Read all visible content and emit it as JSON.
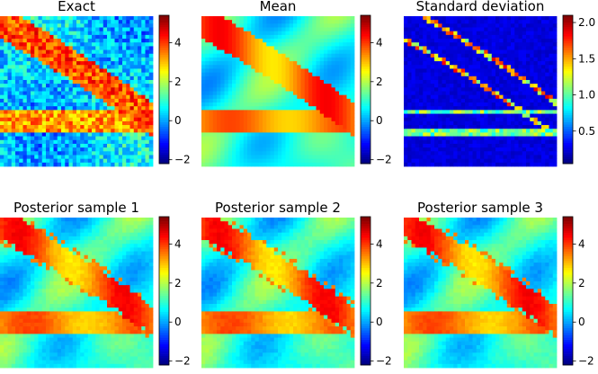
{
  "colormap": "jet",
  "colors": {
    "jet_low": "#00007f",
    "jet_mid": "#7fff7f",
    "jet_high": "#7f0000"
  },
  "chart_data": [
    {
      "type": "heatmap",
      "title": "Exact",
      "field": "noisy",
      "colorbar": {
        "range": [
          -2.2,
          5.4
        ],
        "ticks": [
          -2,
          0,
          2,
          4
        ],
        "tick_labels": [
          "−2",
          "0",
          "2",
          "4"
        ]
      }
    },
    {
      "type": "heatmap",
      "title": "Mean",
      "field": "smooth",
      "colorbar": {
        "range": [
          -2.2,
          5.4
        ],
        "ticks": [
          -2,
          0,
          2,
          4
        ],
        "tick_labels": [
          "−2",
          "0",
          "2",
          "4"
        ]
      }
    },
    {
      "type": "heatmap",
      "title": "Standard deviation",
      "field": "std",
      "colorbar": {
        "range": [
          0.05,
          2.1
        ],
        "ticks": [
          0.5,
          1.0,
          1.5,
          2.0
        ],
        "tick_labels": [
          "0.5",
          "1.0",
          "1.5",
          "2.0"
        ]
      }
    },
    {
      "type": "heatmap",
      "title": "Posterior sample 1",
      "field": "sample",
      "colorbar": {
        "range": [
          -2.2,
          5.4
        ],
        "ticks": [
          -2,
          0,
          2,
          4
        ],
        "tick_labels": [
          "−2",
          "0",
          "2",
          "4"
        ]
      }
    },
    {
      "type": "heatmap",
      "title": "Posterior sample 2",
      "field": "sample",
      "colorbar": {
        "range": [
          -2.2,
          5.4
        ],
        "ticks": [
          -2,
          0,
          2,
          4
        ],
        "tick_labels": [
          "−2",
          "0",
          "2",
          "4"
        ]
      }
    },
    {
      "type": "heatmap",
      "title": "Posterior sample 3",
      "field": "sample",
      "colorbar": {
        "range": [
          -2.2,
          5.4
        ],
        "ticks": [
          -2,
          0,
          2,
          4
        ],
        "tick_labels": [
          "−2",
          "0",
          "2",
          "4"
        ]
      }
    }
  ]
}
